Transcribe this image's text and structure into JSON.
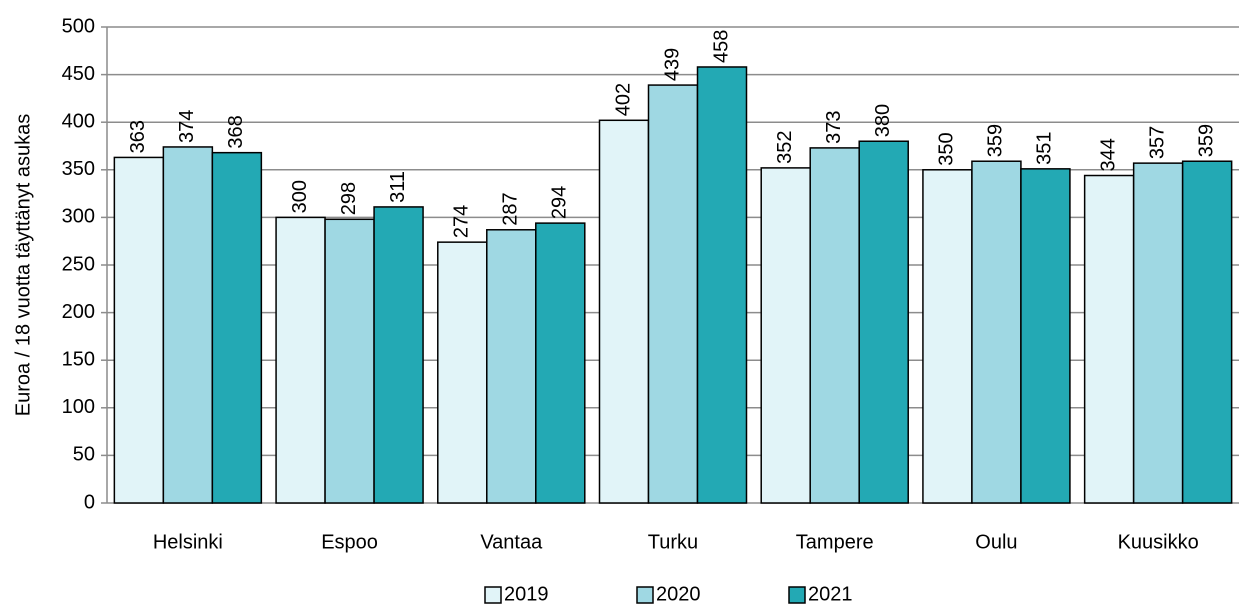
{
  "chart_data": {
    "type": "bar",
    "y_label": "Euroa / 18 vuotta täyttänyt asukas",
    "categories": [
      "Helsinki",
      "Espoo",
      "Vantaa",
      "Turku",
      "Tampere",
      "Oulu",
      "Kuusikko"
    ],
    "series": [
      {
        "name": "2019",
        "color": "#e1f4f8",
        "values": [
          363,
          300,
          274,
          402,
          352,
          350,
          344
        ]
      },
      {
        "name": "2020",
        "color": "#9fd8e3",
        "values": [
          374,
          298,
          287,
          439,
          373,
          359,
          357
        ]
      },
      {
        "name": "2021",
        "color": "#23a9b4",
        "values": [
          368,
          311,
          294,
          458,
          380,
          351,
          359
        ]
      }
    ],
    "ylim": [
      0,
      500
    ],
    "yticks": [
      0,
      50,
      100,
      150,
      200,
      250,
      300,
      350,
      400,
      450,
      500
    ],
    "grid": true,
    "legend": "bottom"
  }
}
